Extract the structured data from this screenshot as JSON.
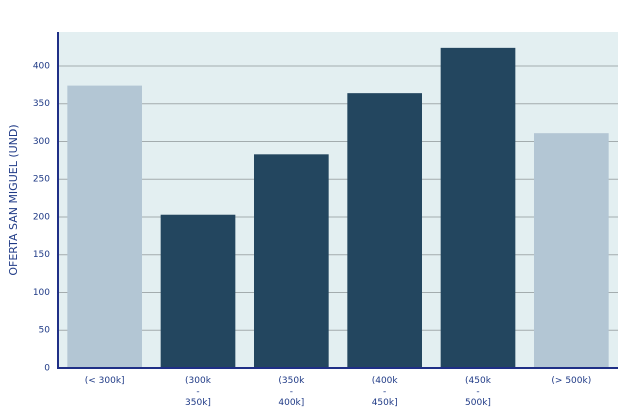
{
  "chart_data": {
    "type": "bar",
    "y_label": "OFERTA SAN MIGUEL (UND)",
    "categories": [
      "(< 300k]",
      "(300k\n-\n350k]",
      "(350k\n-\n400k]",
      "(400k\n-\n450k]",
      "(450k\n-\n500k]",
      "(> 500k)"
    ],
    "values": [
      374,
      203,
      283,
      364,
      424,
      311
    ],
    "colors": [
      "#b3c6d4",
      "#23465f",
      "#23465f",
      "#23465f",
      "#23465f",
      "#b3c6d4"
    ],
    "ylim": [
      0,
      445
    ],
    "yticks": [
      0,
      50,
      100,
      150,
      200,
      250,
      300,
      350,
      400
    ],
    "grid": true
  }
}
